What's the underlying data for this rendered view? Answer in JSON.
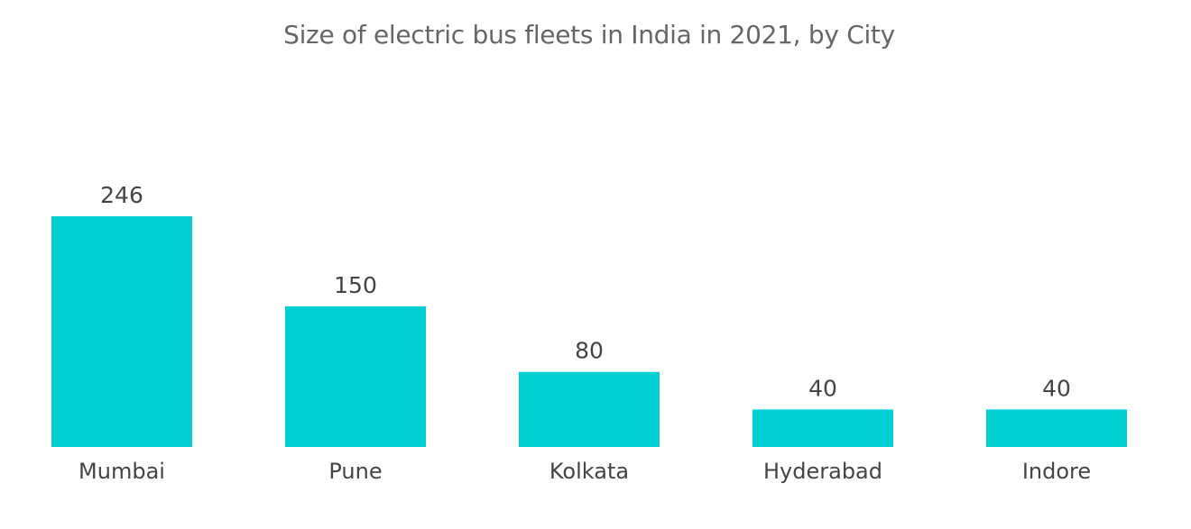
{
  "chart_data": {
    "type": "bar",
    "title": "Size of electric bus fleets in India in 2021, by City",
    "categories": [
      "Mumbai",
      "Pune",
      "Kolkata",
      "Hyderabad",
      "Indore"
    ],
    "values": [
      246,
      150,
      80,
      40,
      40
    ],
    "value_labels": [
      "246",
      "150",
      "80",
      "40",
      "40"
    ],
    "xlabel": "",
    "ylabel": "",
    "ylim": [
      0,
      246
    ],
    "grid": false,
    "legend": "none",
    "bar_color": "#00CED1"
  }
}
